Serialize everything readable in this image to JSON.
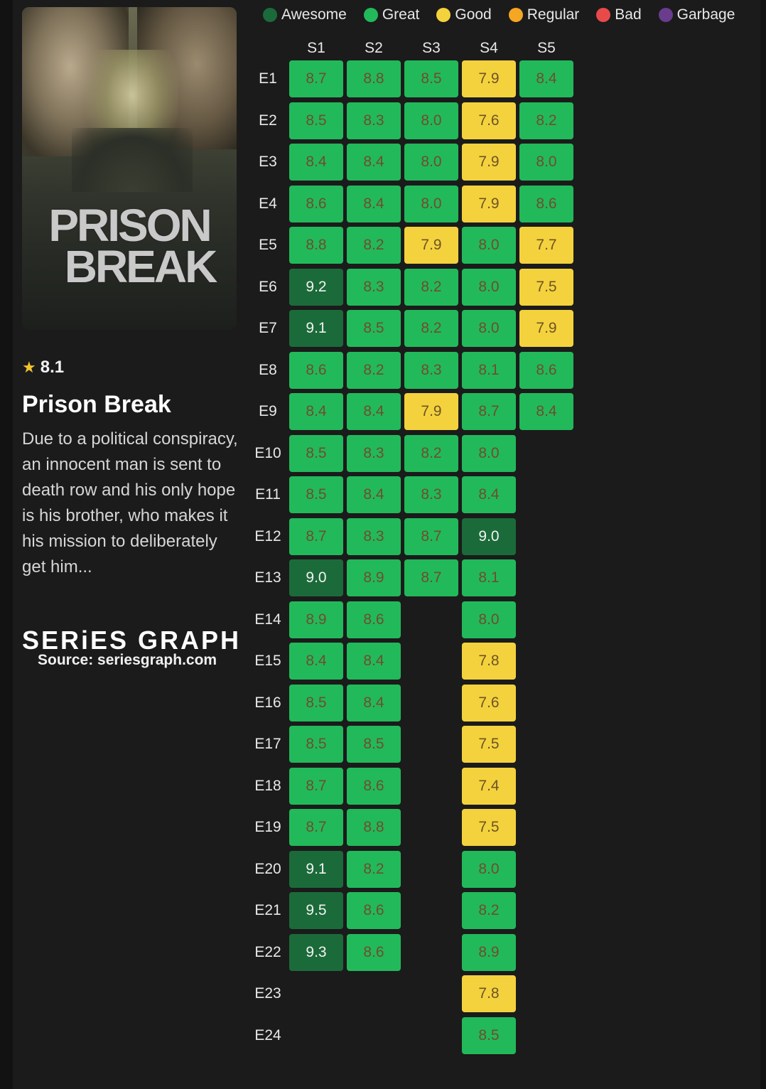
{
  "poster": {
    "title_line1": "PRISON",
    "title_line2": "BREAK"
  },
  "show": {
    "rating": "8.1",
    "title": "Prison Break",
    "description": "Due to a political conspiracy, an innocent man is sent to death row and his only hope is his brother, who makes it his mission to deliberately get him...",
    "brand": "SERiES GRAPH",
    "source": "Source: seriesgraph.com"
  },
  "legend": [
    {
      "label": "Awesome",
      "color": "#1b6b3a"
    },
    {
      "label": "Great",
      "color": "#22b95b"
    },
    {
      "label": "Good",
      "color": "#f3d23d"
    },
    {
      "label": "Regular",
      "color": "#f5a623"
    },
    {
      "label": "Bad",
      "color": "#e84a4a"
    },
    {
      "label": "Garbage",
      "color": "#6a3c8e"
    }
  ],
  "chart_data": {
    "type": "heatmap",
    "columns": [
      "S1",
      "S2",
      "S3",
      "S4",
      "S5"
    ],
    "rows": [
      "E1",
      "E2",
      "E3",
      "E4",
      "E5",
      "E6",
      "E7",
      "E8",
      "E9",
      "E10",
      "E11",
      "E12",
      "E13",
      "E14",
      "E15",
      "E16",
      "E17",
      "E18",
      "E19",
      "E20",
      "E21",
      "E22",
      "E23",
      "E24"
    ],
    "values": [
      [
        8.7,
        8.5,
        8.4,
        8.6,
        8.8,
        9.2,
        9.1,
        8.6,
        8.4,
        8.5,
        8.5,
        8.7,
        9.0,
        8.9,
        8.4,
        8.5,
        8.5,
        8.7,
        8.7,
        9.1,
        9.5,
        9.3
      ],
      [
        8.8,
        8.3,
        8.4,
        8.4,
        8.2,
        8.3,
        8.5,
        8.2,
        8.4,
        8.3,
        8.4,
        8.3,
        8.9,
        8.6,
        8.4,
        8.4,
        8.5,
        8.6,
        8.8,
        8.2,
        8.6,
        8.6
      ],
      [
        8.5,
        8.0,
        8.0,
        8.0,
        7.9,
        8.2,
        8.2,
        8.3,
        7.9,
        8.2,
        8.3,
        8.7,
        8.7
      ],
      [
        7.9,
        7.6,
        7.9,
        7.9,
        8.0,
        8.0,
        8.0,
        8.1,
        8.7,
        8.0,
        8.4,
        9.0,
        8.1,
        8.0,
        7.8,
        7.6,
        7.5,
        7.4,
        7.5,
        8.0,
        8.2,
        8.9,
        7.8,
        8.5
      ],
      [
        8.4,
        8.2,
        8.0,
        8.6,
        7.7,
        7.5,
        7.9,
        8.6,
        8.4
      ]
    ],
    "value_labels": [
      [
        "8.7",
        "8.5",
        "8.4",
        "8.6",
        "8.8",
        "9.2",
        "9.1",
        "8.6",
        "8.4",
        "8.5",
        "8.5",
        "8.7",
        "9.0",
        "8.9",
        "8.4",
        "8.5",
        "8.5",
        "8.7",
        "8.7",
        "9.1",
        "9.5",
        "9.3"
      ],
      [
        "8.8",
        "8.3",
        "8.4",
        "8.4",
        "8.2",
        "8.3",
        "8.5",
        "8.2",
        "8.4",
        "8.3",
        "8.4",
        "8.3",
        "8.9",
        "8.6",
        "8.4",
        "8.4",
        "8.5",
        "8.6",
        "8.8",
        "8.2",
        "8.6",
        "8.6"
      ],
      [
        "8.5",
        "8.0",
        "8.0",
        "8.0",
        "7.9",
        "8.2",
        "8.2",
        "8.3",
        "7.9",
        "8.2",
        "8.3",
        "8.7",
        "8.7"
      ],
      [
        "7.9",
        "7.6",
        "7.9",
        "7.9",
        "8.0",
        "8.0",
        "8.0",
        "8.1",
        "8.7",
        "8.0",
        "8.4",
        "9.0",
        "8.1",
        "8.0",
        "7.8",
        "7.6",
        "7.5",
        "7.4",
        "7.5",
        "8.0",
        "8.2",
        "8.9",
        "7.8",
        "8.5"
      ],
      [
        "8.4",
        "8.2",
        "8.0",
        "8.6",
        "7.7",
        "7.5",
        "7.9",
        "8.6",
        "8.4"
      ]
    ],
    "categories": [
      [
        "great",
        "great",
        "great",
        "great",
        "great",
        "awesome",
        "awesome",
        "great",
        "great",
        "great",
        "great",
        "great",
        "awesome",
        "great",
        "great",
        "great",
        "great",
        "great",
        "great",
        "awesome",
        "awesome",
        "awesome"
      ],
      [
        "great",
        "great",
        "great",
        "great",
        "great",
        "great",
        "great",
        "great",
        "great",
        "great",
        "great",
        "great",
        "great",
        "great",
        "great",
        "great",
        "great",
        "great",
        "great",
        "great",
        "great",
        "great"
      ],
      [
        "great",
        "great",
        "great",
        "great",
        "good",
        "great",
        "great",
        "great",
        "good",
        "great",
        "great",
        "great",
        "great"
      ],
      [
        "good",
        "good",
        "good",
        "good",
        "great",
        "great",
        "great",
        "great",
        "great",
        "great",
        "great",
        "awesome",
        "great",
        "great",
        "good",
        "good",
        "good",
        "good",
        "good",
        "great",
        "great",
        "great",
        "good",
        "great"
      ],
      [
        "great",
        "great",
        "great",
        "great",
        "good",
        "good",
        "good",
        "great",
        "great"
      ]
    ]
  }
}
